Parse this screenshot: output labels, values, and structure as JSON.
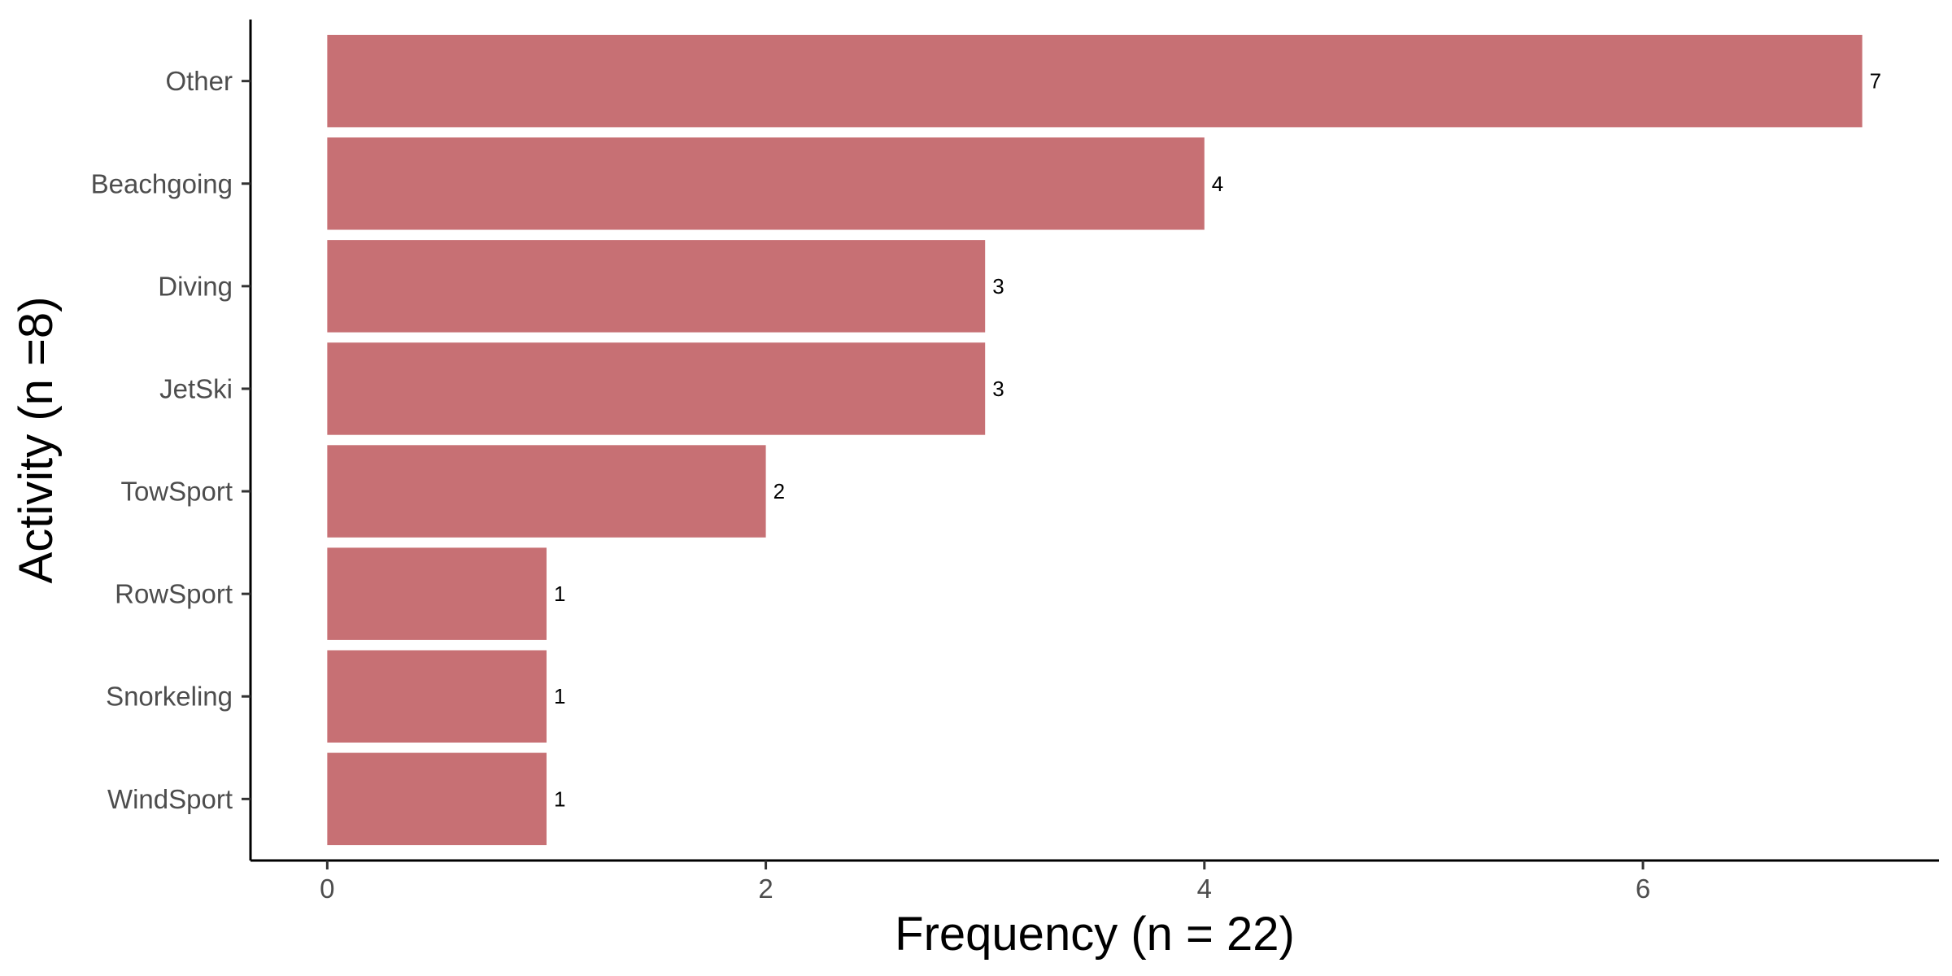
{
  "chart_data": {
    "type": "bar",
    "orientation": "horizontal",
    "categories": [
      "Other",
      "Beachgoing",
      "Diving",
      "JetSki",
      "TowSport",
      "RowSport",
      "Snorkeling",
      "WindSport"
    ],
    "values": [
      7,
      4,
      3,
      3,
      2,
      1,
      1,
      1
    ],
    "data_labels": [
      "7",
      "4",
      "3",
      "3",
      "2",
      "1",
      "1",
      "1"
    ],
    "title": "",
    "xlabel": "Frequency (n = 22)",
    "ylabel": "Activity (n =8)",
    "xlim": [
      -0.35,
      7.35
    ],
    "x_ticks": [
      0,
      2,
      4,
      6
    ],
    "x_tick_labels": [
      "0",
      "2",
      "4",
      "6"
    ],
    "grid": false,
    "legend": "none",
    "bar_color": "#C77074"
  }
}
